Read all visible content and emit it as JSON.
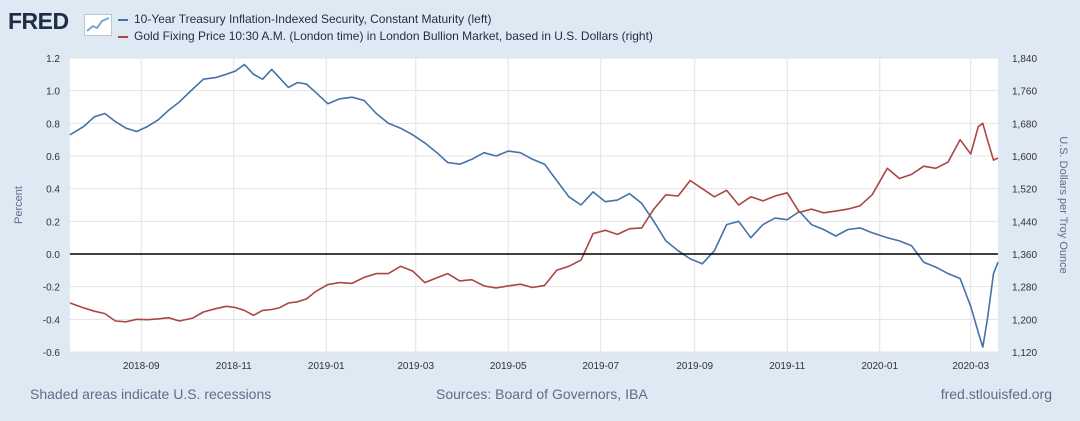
{
  "header": {
    "logo_text": "FRED",
    "legend": [
      {
        "label": "10-Year Treasury Inflation-Indexed Security, Constant Maturity (left)",
        "color": "#4572a7"
      },
      {
        "label": "Gold Fixing Price 10:30 A.M. (London time) in London Bullion Market, based in U.S. Dollars (right)",
        "color": "#aa4643"
      }
    ]
  },
  "footer": {
    "recession_note": "Shaded areas indicate U.S. recessions",
    "sources": "Sources: Board of Governors, IBA",
    "site": "fred.stlouisfed.org"
  },
  "chart_data": {
    "type": "line",
    "x_range": [
      "2018-07-16",
      "2020-03-19"
    ],
    "x_ticks": [
      {
        "date": "2018-09-01",
        "label": "2018-09"
      },
      {
        "date": "2018-11-01",
        "label": "2018-11"
      },
      {
        "date": "2019-01-01",
        "label": "2019-01"
      },
      {
        "date": "2019-03-01",
        "label": "2019-03"
      },
      {
        "date": "2019-05-01",
        "label": "2019-05"
      },
      {
        "date": "2019-07-01",
        "label": "2019-07"
      },
      {
        "date": "2019-09-01",
        "label": "2019-09"
      },
      {
        "date": "2019-11-01",
        "label": "2019-11"
      },
      {
        "date": "2020-01-01",
        "label": "2020-01"
      },
      {
        "date": "2020-03-01",
        "label": "2020-03"
      }
    ],
    "left_axis": {
      "label": "Percent",
      "min": -0.6,
      "max": 1.2,
      "ticks": [
        "1.2",
        "1.0",
        "0.8",
        "0.6",
        "0.4",
        "0.2",
        "0.0",
        "-0.2",
        "-0.4",
        "-0.6"
      ]
    },
    "right_axis": {
      "label": "U.S. Dollars per Troy Ounce",
      "min": 1120,
      "max": 1840,
      "ticks": [
        "1,840",
        "1,760",
        "1,680",
        "1,600",
        "1,520",
        "1,440",
        "1,360",
        "1,280",
        "1,200",
        "1,120"
      ]
    },
    "zero_line": 0.0,
    "series": [
      {
        "name": "10-Year Treasury Inflation-Indexed Security, Constant Maturity (left)",
        "axis": "left",
        "color": "#4572a7",
        "points": [
          [
            "2018-07-16",
            0.73
          ],
          [
            "2018-07-25",
            0.78
          ],
          [
            "2018-08-01",
            0.84
          ],
          [
            "2018-08-08",
            0.86
          ],
          [
            "2018-08-15",
            0.81
          ],
          [
            "2018-08-22",
            0.77
          ],
          [
            "2018-08-29",
            0.75
          ],
          [
            "2018-09-05",
            0.78
          ],
          [
            "2018-09-12",
            0.82
          ],
          [
            "2018-09-19",
            0.88
          ],
          [
            "2018-09-26",
            0.93
          ],
          [
            "2018-10-05",
            1.01
          ],
          [
            "2018-10-12",
            1.07
          ],
          [
            "2018-10-20",
            1.08
          ],
          [
            "2018-10-27",
            1.1
          ],
          [
            "2018-11-02",
            1.12
          ],
          [
            "2018-11-08",
            1.16
          ],
          [
            "2018-11-14",
            1.1
          ],
          [
            "2018-11-20",
            1.07
          ],
          [
            "2018-11-26",
            1.13
          ],
          [
            "2018-12-01",
            1.08
          ],
          [
            "2018-12-07",
            1.02
          ],
          [
            "2018-12-13",
            1.05
          ],
          [
            "2018-12-19",
            1.04
          ],
          [
            "2018-12-25",
            0.99
          ],
          [
            "2019-01-02",
            0.92
          ],
          [
            "2019-01-10",
            0.95
          ],
          [
            "2019-01-18",
            0.96
          ],
          [
            "2019-01-26",
            0.94
          ],
          [
            "2019-02-03",
            0.86
          ],
          [
            "2019-02-11",
            0.8
          ],
          [
            "2019-02-19",
            0.77
          ],
          [
            "2019-02-27",
            0.73
          ],
          [
            "2019-03-07",
            0.68
          ],
          [
            "2019-03-15",
            0.62
          ],
          [
            "2019-03-22",
            0.56
          ],
          [
            "2019-03-30",
            0.55
          ],
          [
            "2019-04-07",
            0.58
          ],
          [
            "2019-04-15",
            0.62
          ],
          [
            "2019-04-23",
            0.6
          ],
          [
            "2019-05-01",
            0.63
          ],
          [
            "2019-05-09",
            0.62
          ],
          [
            "2019-05-17",
            0.58
          ],
          [
            "2019-05-25",
            0.55
          ],
          [
            "2019-06-02",
            0.45
          ],
          [
            "2019-06-10",
            0.35
          ],
          [
            "2019-06-18",
            0.3
          ],
          [
            "2019-06-26",
            0.38
          ],
          [
            "2019-07-04",
            0.32
          ],
          [
            "2019-07-12",
            0.33
          ],
          [
            "2019-07-20",
            0.37
          ],
          [
            "2019-07-28",
            0.31
          ],
          [
            "2019-08-05",
            0.2
          ],
          [
            "2019-08-13",
            0.08
          ],
          [
            "2019-08-21",
            0.02
          ],
          [
            "2019-08-29",
            -0.03
          ],
          [
            "2019-09-06",
            -0.06
          ],
          [
            "2019-09-14",
            0.02
          ],
          [
            "2019-09-22",
            0.18
          ],
          [
            "2019-09-30",
            0.2
          ],
          [
            "2019-10-08",
            0.1
          ],
          [
            "2019-10-16",
            0.18
          ],
          [
            "2019-10-24",
            0.22
          ],
          [
            "2019-11-01",
            0.21
          ],
          [
            "2019-11-09",
            0.26
          ],
          [
            "2019-11-17",
            0.18
          ],
          [
            "2019-11-25",
            0.15
          ],
          [
            "2019-12-03",
            0.11
          ],
          [
            "2019-12-11",
            0.15
          ],
          [
            "2019-12-19",
            0.16
          ],
          [
            "2019-12-27",
            0.13
          ],
          [
            "2020-01-06",
            0.1
          ],
          [
            "2020-01-14",
            0.08
          ],
          [
            "2020-01-22",
            0.05
          ],
          [
            "2020-01-30",
            -0.05
          ],
          [
            "2020-02-07",
            -0.08
          ],
          [
            "2020-02-15",
            -0.12
          ],
          [
            "2020-02-23",
            -0.15
          ],
          [
            "2020-03-01",
            -0.32
          ],
          [
            "2020-03-06",
            -0.48
          ],
          [
            "2020-03-09",
            -0.57
          ],
          [
            "2020-03-12",
            -0.4
          ],
          [
            "2020-03-16",
            -0.12
          ],
          [
            "2020-03-19",
            -0.05
          ]
        ]
      },
      {
        "name": "Gold Fixing Price 10:30 A.M. (London time) in London Bullion Market, based in U.S. Dollars (right)",
        "axis": "right",
        "color": "#aa4643",
        "points": [
          [
            "2018-07-16",
            1240
          ],
          [
            "2018-07-25",
            1228
          ],
          [
            "2018-08-01",
            1220
          ],
          [
            "2018-08-08",
            1214
          ],
          [
            "2018-08-15",
            1196
          ],
          [
            "2018-08-22",
            1194
          ],
          [
            "2018-08-29",
            1200
          ],
          [
            "2018-09-05",
            1199
          ],
          [
            "2018-09-12",
            1201
          ],
          [
            "2018-09-19",
            1204
          ],
          [
            "2018-09-26",
            1196
          ],
          [
            "2018-10-05",
            1203
          ],
          [
            "2018-10-12",
            1218
          ],
          [
            "2018-10-20",
            1226
          ],
          [
            "2018-10-27",
            1232
          ],
          [
            "2018-11-02",
            1229
          ],
          [
            "2018-11-08",
            1222
          ],
          [
            "2018-11-14",
            1210
          ],
          [
            "2018-11-20",
            1222
          ],
          [
            "2018-11-26",
            1224
          ],
          [
            "2018-12-01",
            1228
          ],
          [
            "2018-12-07",
            1240
          ],
          [
            "2018-12-13",
            1243
          ],
          [
            "2018-12-19",
            1250
          ],
          [
            "2018-12-25",
            1268
          ],
          [
            "2019-01-02",
            1285
          ],
          [
            "2019-01-10",
            1290
          ],
          [
            "2019-01-18",
            1288
          ],
          [
            "2019-01-26",
            1303
          ],
          [
            "2019-02-03",
            1312
          ],
          [
            "2019-02-11",
            1312
          ],
          [
            "2019-02-19",
            1330
          ],
          [
            "2019-02-27",
            1318
          ],
          [
            "2019-03-07",
            1290
          ],
          [
            "2019-03-15",
            1302
          ],
          [
            "2019-03-22",
            1312
          ],
          [
            "2019-03-30",
            1294
          ],
          [
            "2019-04-07",
            1297
          ],
          [
            "2019-04-15",
            1282
          ],
          [
            "2019-04-23",
            1277
          ],
          [
            "2019-05-01",
            1282
          ],
          [
            "2019-05-09",
            1286
          ],
          [
            "2019-05-17",
            1278
          ],
          [
            "2019-05-25",
            1283
          ],
          [
            "2019-06-02",
            1320
          ],
          [
            "2019-06-10",
            1330
          ],
          [
            "2019-06-18",
            1345
          ],
          [
            "2019-06-26",
            1410
          ],
          [
            "2019-07-04",
            1418
          ],
          [
            "2019-07-12",
            1408
          ],
          [
            "2019-07-20",
            1422
          ],
          [
            "2019-07-28",
            1424
          ],
          [
            "2019-08-05",
            1470
          ],
          [
            "2019-08-13",
            1505
          ],
          [
            "2019-08-21",
            1502
          ],
          [
            "2019-08-29",
            1540
          ],
          [
            "2019-09-06",
            1520
          ],
          [
            "2019-09-14",
            1500
          ],
          [
            "2019-09-22",
            1516
          ],
          [
            "2019-09-30",
            1480
          ],
          [
            "2019-10-08",
            1500
          ],
          [
            "2019-10-16",
            1490
          ],
          [
            "2019-10-24",
            1502
          ],
          [
            "2019-11-01",
            1510
          ],
          [
            "2019-11-09",
            1462
          ],
          [
            "2019-11-17",
            1470
          ],
          [
            "2019-11-25",
            1461
          ],
          [
            "2019-12-03",
            1465
          ],
          [
            "2019-12-11",
            1470
          ],
          [
            "2019-12-19",
            1478
          ],
          [
            "2019-12-27",
            1505
          ],
          [
            "2020-01-06",
            1570
          ],
          [
            "2020-01-14",
            1545
          ],
          [
            "2020-01-22",
            1555
          ],
          [
            "2020-01-30",
            1575
          ],
          [
            "2020-02-07",
            1570
          ],
          [
            "2020-02-15",
            1585
          ],
          [
            "2020-02-23",
            1640
          ],
          [
            "2020-03-01",
            1605
          ],
          [
            "2020-03-06",
            1672
          ],
          [
            "2020-03-09",
            1680
          ],
          [
            "2020-03-12",
            1640
          ],
          [
            "2020-03-16",
            1590
          ],
          [
            "2020-03-19",
            1595
          ]
        ]
      }
    ]
  }
}
